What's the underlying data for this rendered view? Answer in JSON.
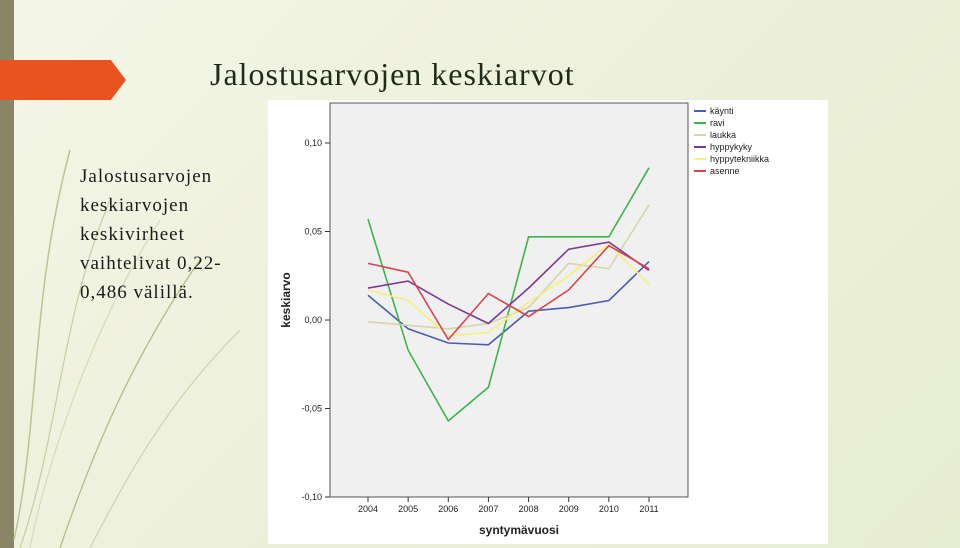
{
  "slide": {
    "title": "Jalostusarvojen keskiarvot",
    "body_lines": [
      "Jalostusarvojen",
      "keskiarvojen",
      "keskivirheet",
      "vaihtelivat 0,22-",
      "0,486 välillä."
    ],
    "accent_color": "#e8531f"
  },
  "chart_data": {
    "type": "line",
    "title": "",
    "xlabel": "syntymävuosi",
    "ylabel": "keskiarvo",
    "x": [
      2004,
      2005,
      2006,
      2007,
      2008,
      2009,
      2010,
      2011
    ],
    "ylim": [
      -0.1,
      0.1
    ],
    "yticks": [
      -0.1,
      -0.05,
      0.0,
      0.05,
      0.1
    ],
    "ytick_labels": [
      "-0,10",
      "-0,05",
      "0,00",
      "0,05",
      "0,10"
    ],
    "grid": false,
    "legend_position": "right",
    "series": [
      {
        "name": "käynti",
        "color": "#4a5fb0",
        "values": [
          0.014,
          -0.005,
          -0.013,
          -0.014,
          0.005,
          0.007,
          0.011,
          0.033
        ]
      },
      {
        "name": "ravi",
        "color": "#3cb54a",
        "values": [
          0.057,
          -0.017,
          -0.057,
          -0.038,
          0.047,
          0.047,
          0.047,
          0.086
        ]
      },
      {
        "name": "laukka",
        "color": "#d8d4a8",
        "values": [
          -0.001,
          -0.003,
          -0.005,
          -0.002,
          0.007,
          0.032,
          0.029,
          0.065
        ]
      },
      {
        "name": "hyppykyky",
        "color": "#7a3a96",
        "values": [
          0.018,
          0.022,
          0.009,
          -0.002,
          0.018,
          0.04,
          0.044,
          0.028
        ]
      },
      {
        "name": "hyppytekniikka",
        "color": "#f6f07a",
        "values": [
          0.017,
          0.011,
          -0.009,
          -0.007,
          0.01,
          0.025,
          0.043,
          0.02
        ]
      },
      {
        "name": "asenne",
        "color": "#d9454f",
        "values": [
          0.032,
          0.027,
          -0.011,
          0.015,
          0.002,
          0.017,
          0.042,
          0.029
        ]
      }
    ],
    "plot_background": "#f0f0f0"
  }
}
